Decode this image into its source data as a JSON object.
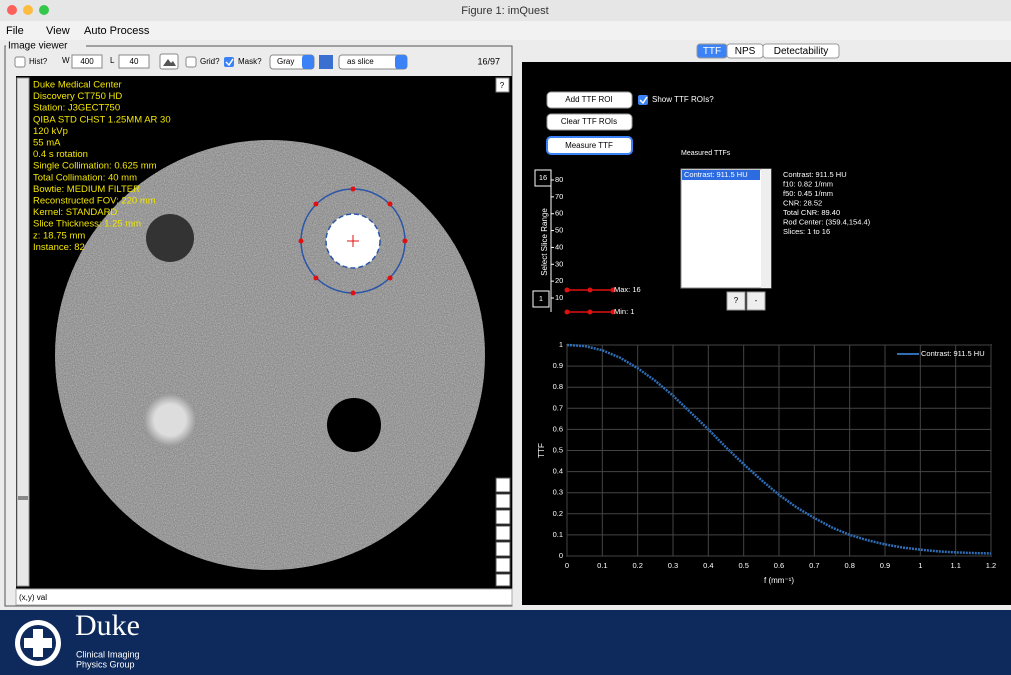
{
  "window": {
    "title": "Figure 1: imQuest"
  },
  "menu": [
    "File",
    "View",
    "Auto Process"
  ],
  "image_viewer": {
    "title": "Image viewer",
    "hist": "Hist?",
    "w_label": "W",
    "w_value": "400",
    "l_label": "L",
    "l_value": "40",
    "grid": "Grid?",
    "mask": "Mask?",
    "colormap": "Gray",
    "slice_mode": "as slice",
    "slice_index": "16/97",
    "help": "?",
    "status": "(x,y) val",
    "overlay": [
      "Duke Medical Center",
      "Discovery CT750 HD",
      "Station: J3GECT750",
      "QIBA STD CHST 1.25MM AR 30",
      "120 kVp",
      "55 mA",
      "0.4 s rotation",
      "Single Collimation: 0.625 mm",
      "Total Collimation: 40 mm",
      "Bowtie: MEDIUM FILTER",
      "Reconstructed FOV: 220 mm",
      "Kernel: STANDARD",
      "Slice Thickness: 1.25 mm",
      "z: 18.75 mm",
      "Instance: 82"
    ]
  },
  "tabs": [
    "TTF",
    "NPS",
    "Detectability"
  ],
  "ttf_panel": {
    "add_roi": "Add TTF ROI",
    "clear_rois": "Clear TTF ROIs",
    "measure": "Measure TTF",
    "show_rois": "Show TTF ROIs?",
    "measured_title": "Measured TTFs",
    "list_items": [
      "Contrast: 911.5 HU"
    ],
    "list_buttons": [
      "?",
      "-"
    ],
    "stats": [
      "Contrast: 911.5 HU",
      "f10: 0.82 1/mm",
      "f50: 0.45 1/mm",
      "CNR: 28.52",
      "Total CNR: 89.40",
      "Rod Center: (359.4,154.4)",
      "Slices: 1 to 16"
    ],
    "slice_range": {
      "label": "Select Slice Range",
      "max_box": "16",
      "min_box": "1",
      "max_label": "Max: 16",
      "min_label": "Min: 1",
      "ticks": [
        10,
        20,
        30,
        40,
        50,
        60,
        70,
        80
      ]
    }
  },
  "chart_data": {
    "type": "line",
    "xlabel": "f (mm⁻¹)",
    "ylabel": "TTF",
    "xlim": [
      0,
      1.2
    ],
    "ylim": [
      0,
      1
    ],
    "xticks": [
      0,
      0.1,
      0.2,
      0.3,
      0.4,
      0.5,
      0.6,
      0.7,
      0.8,
      0.9,
      1,
      1.1,
      1.2
    ],
    "yticks": [
      0,
      0.1,
      0.2,
      0.3,
      0.4,
      0.5,
      0.6,
      0.7,
      0.8,
      0.9,
      1
    ],
    "grid": true,
    "legend": "top-right",
    "x": [
      0,
      0.05,
      0.1,
      0.15,
      0.2,
      0.25,
      0.3,
      0.35,
      0.4,
      0.45,
      0.5,
      0.55,
      0.6,
      0.65,
      0.7,
      0.75,
      0.8,
      0.85,
      0.9,
      0.95,
      1,
      1.05,
      1.1,
      1.15,
      1.2
    ],
    "series": [
      {
        "name": "Contrast: 911.5 HU",
        "color": "#2f6db5",
        "values": [
          1,
          0.995,
          0.975,
          0.94,
          0.89,
          0.83,
          0.76,
          0.68,
          0.6,
          0.515,
          0.435,
          0.36,
          0.29,
          0.23,
          0.18,
          0.135,
          0.1,
          0.075,
          0.055,
          0.04,
          0.03,
          0.022,
          0.017,
          0.014,
          0.012
        ]
      }
    ]
  },
  "logo": {
    "name": "Duke",
    "line1": "Clinical Imaging",
    "line2": "Physics Group"
  }
}
